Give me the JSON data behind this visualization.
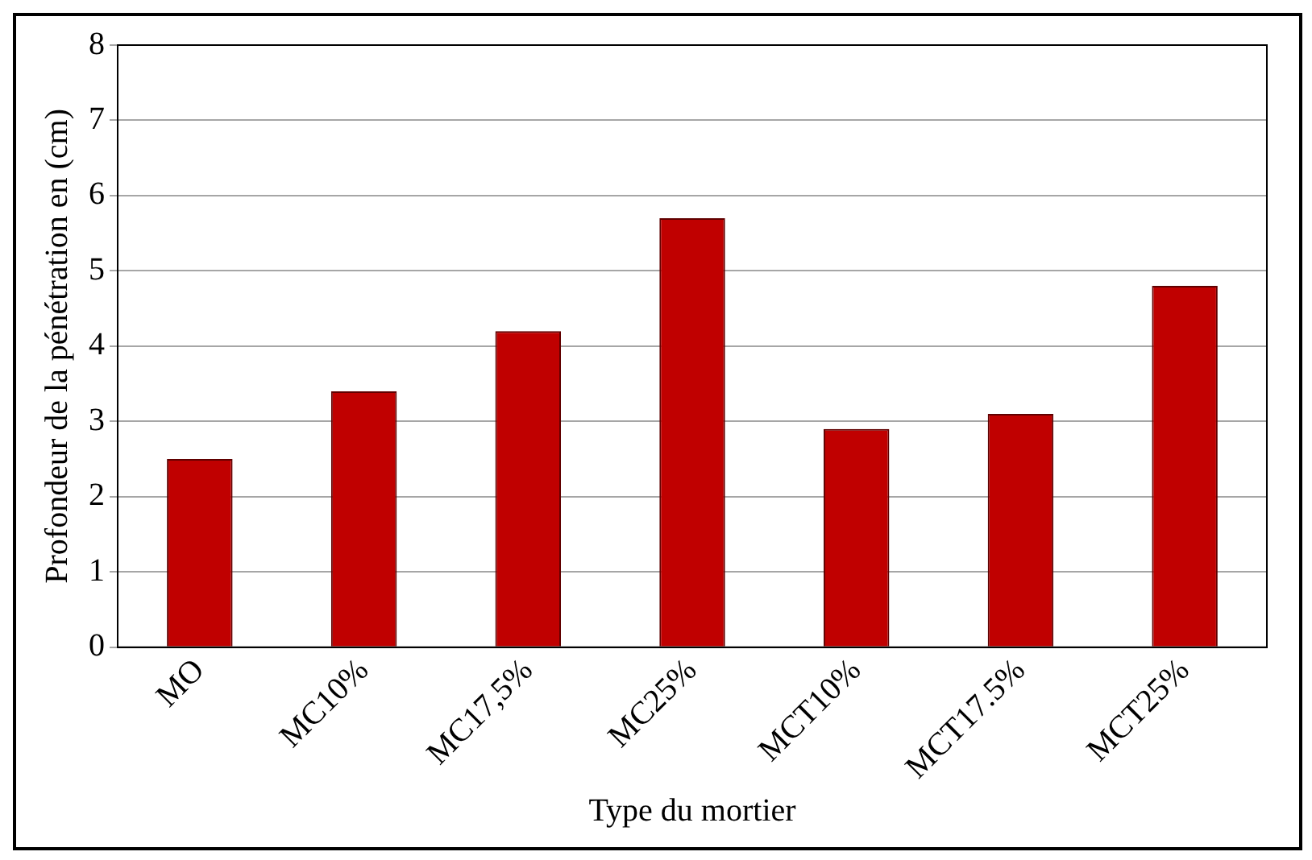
{
  "chart_data": {
    "type": "bar",
    "xlabel": "Type du mortier",
    "ylabel": "Profondeur de la pénétration en (cm)",
    "categories": [
      "MO",
      "MC10%",
      "MC17,5%",
      "MC25%",
      "MCT10%",
      "MCT17.5%",
      "MCT25%"
    ],
    "values": [
      2.5,
      3.4,
      4.2,
      5.7,
      2.9,
      3.1,
      4.8
    ],
    "color": "#c00000",
    "ylim": [
      0,
      8
    ],
    "yticks": [
      0,
      1,
      2,
      3,
      4,
      5,
      6,
      7,
      8
    ],
    "grid": "y",
    "legend": false
  }
}
